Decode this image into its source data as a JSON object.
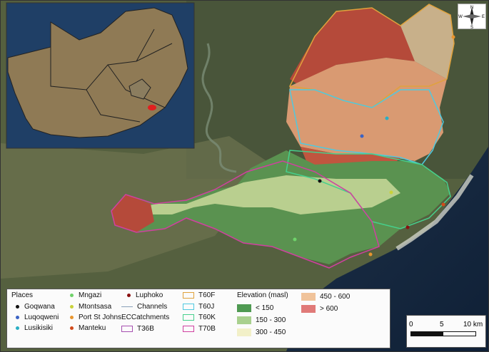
{
  "inset": {
    "description_colors": {
      "land": "#8f7a55",
      "ocean": "#1f3f66",
      "marker": "#e0201f"
    }
  },
  "north_arrow": {
    "n": "N",
    "s": "S",
    "e": "E",
    "w": "W"
  },
  "legend": {
    "places_title": "Places",
    "places": [
      {
        "label": "Goqwana",
        "color": "#111111"
      },
      {
        "label": "Luqoqweni",
        "color": "#3b63c4"
      },
      {
        "label": "Lusikisiki",
        "color": "#2aaec4"
      },
      {
        "label": "Mngazi",
        "color": "#6fd26a"
      },
      {
        "label": "Mtontsasa",
        "color": "#c9d23a"
      },
      {
        "label": "Port St Johns",
        "color": "#e8952e"
      },
      {
        "label": "Manteku",
        "color": "#d14a1b"
      },
      {
        "label": "Luphoko",
        "color": "#8a1010"
      }
    ],
    "channels_label": "Channels",
    "channels_color": "#8aa0b8",
    "catchments_title": "ECCatchments",
    "catchments": [
      {
        "label": "T36B",
        "color": "#a64fb0"
      },
      {
        "label": "T60F",
        "color": "#e0a23c"
      },
      {
        "label": "T60J",
        "color": "#4fc9e0"
      },
      {
        "label": "T60K",
        "color": "#46d08c"
      },
      {
        "label": "T70B",
        "color": "#d040a0"
      }
    ],
    "elevation_title": "Elevation (masl)",
    "elevation": [
      {
        "label": "< 150",
        "color": "#4f9a52"
      },
      {
        "label": "150 - 300",
        "color": "#a9d08e"
      },
      {
        "label": "300 - 450",
        "color": "#f2f0c8"
      },
      {
        "label": "450 - 600",
        "color": "#f0c39a"
      },
      {
        "label": "> 600",
        "color": "#e07a78"
      }
    ]
  },
  "scale": {
    "t0": "0",
    "t1": "5",
    "t2": "10 km"
  }
}
